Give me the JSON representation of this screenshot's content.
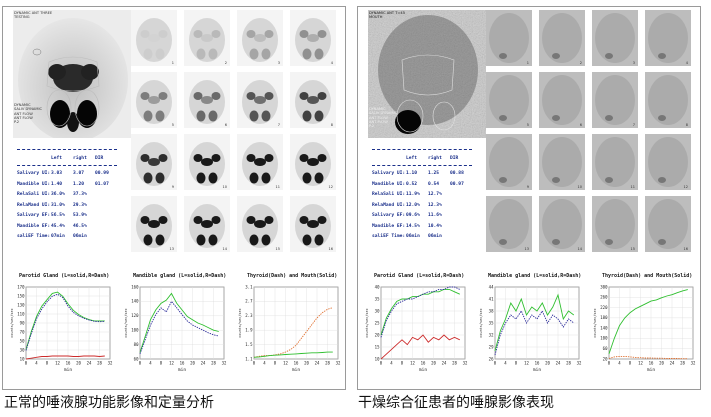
{
  "captions": {
    "normal": "正常的唾液腺功能影像和定量分析",
    "sjogren": "干燥综合征患者的唾腺影像表现"
  },
  "normal": {
    "scan_header": "DYNAMIC ANT THREE\nTESTING",
    "scan_info": "DYNAMIC\nSALIV DYNAMIC\nANT FLOW\nANT FLOW\nP.2",
    "frame_numbers": [
      "1",
      "2",
      "3",
      "4",
      "5",
      "6",
      "7",
      "8",
      "9",
      "10",
      "11",
      "12",
      "13",
      "14",
      "15",
      "16"
    ],
    "table": {
      "headers": [
        "Left",
        "right",
        "DIR"
      ],
      "rows": [
        {
          "label": "Salivary UI:",
          "left": "3.03",
          "right": "3.07",
          "dir": "00.99"
        },
        {
          "label": "Mandible UI:",
          "left": "1.40",
          "right": "1.20",
          "dir": "01.07"
        },
        {
          "label": "RelaSali UI:",
          "left": "36.0%",
          "right": "37.3%",
          "dir": ""
        },
        {
          "label": "RelaMand UI:",
          "left": "31.0%",
          "right": "29.3%",
          "dir": ""
        },
        {
          "label": "Salivary EF:",
          "left": "56.5%",
          "right": "53.9%",
          "dir": ""
        },
        {
          "label": "Mandible EF:",
          "left": "45.4%",
          "right": "46.5%",
          "dir": ""
        },
        {
          "label": "saliEF Time:",
          "left": "07min",
          "right": "06min",
          "dir": ""
        }
      ]
    },
    "charts": [
      {
        "title": "Parotid Gland (L=solid,R=Dash)",
        "ylabel": "counts/sec/sec",
        "xlabel": "min",
        "yticks": [
          "10",
          "30",
          "50",
          "70",
          "90",
          "110",
          "130",
          "150",
          "170"
        ],
        "xticks": [
          "0",
          "4",
          "8",
          "12",
          "16",
          "20",
          "24",
          "28",
          "32"
        ]
      },
      {
        "title": "Mandible gland (L=solid,R=Dash)",
        "ylabel": "counts/sec/sec",
        "xlabel": "min",
        "yticks": [
          "60",
          "80",
          "100",
          "120",
          "140",
          "160"
        ],
        "xticks": [
          "0",
          "4",
          "8",
          "12",
          "16",
          "20",
          "24",
          "28",
          "32"
        ]
      },
      {
        "title": "Thyroid(Dash) and Mouth(Solid)",
        "ylabel": "counts/sec/sec",
        "xlabel": "min",
        "yticks": [
          "1.1",
          "1.5",
          "1.9",
          "2.3",
          "2.7",
          "3.1"
        ],
        "xticks": [
          "0",
          "4",
          "8",
          "12",
          "16",
          "20",
          "24",
          "28",
          "32"
        ]
      }
    ]
  },
  "sjogren": {
    "scan_header": "DYNAMIC ANT T=45\nMOUTH",
    "scan_info": "DYNAMIC\nSALIV DYNAMIC\nANT FLOW\nANT FLOW\nP.2",
    "frame_numbers": [
      "1",
      "2",
      "3",
      "4",
      "5",
      "6",
      "7",
      "8",
      "9",
      "10",
      "11",
      "12",
      "13",
      "14",
      "15",
      "16"
    ],
    "table": {
      "headers": [
        "Left",
        "right",
        "DIR"
      ],
      "rows": [
        {
          "label": "Salivary UI:",
          "left": "1.10",
          "right": "1.25",
          "dir": "00.88"
        },
        {
          "label": "Mandible UI:",
          "left": "0.52",
          "right": "0.54",
          "dir": "00.97"
        },
        {
          "label": "RelaSali UI:",
          "left": "11.9%",
          "right": "12.7%",
          "dir": ""
        },
        {
          "label": "RelaMand UI:",
          "left": "12.0%",
          "right": "12.3%",
          "dir": ""
        },
        {
          "label": "Salivary EF:",
          "left": "09.6%",
          "right": "11.6%",
          "dir": ""
        },
        {
          "label": "Mandible EF:",
          "left": "14.5%",
          "right": "10.4%",
          "dir": ""
        },
        {
          "label": "saliEF Time:",
          "left": "06min",
          "right": "06min",
          "dir": ""
        }
      ]
    },
    "charts": [
      {
        "title": "Parotid Gland (L=solid,R=Dash)",
        "ylabel": "counts/sec/sec",
        "xlabel": "min",
        "yticks": [
          "10",
          "15",
          "20",
          "25",
          "30",
          "35",
          "40"
        ],
        "xticks": [
          "0",
          "4",
          "8",
          "12",
          "16",
          "20",
          "24",
          "28",
          "32"
        ]
      },
      {
        "title": "Mandible gland (L=solid,R=Dash)",
        "ylabel": "counts/sec/sec",
        "xlabel": "min",
        "yticks": [
          "26",
          "29",
          "32",
          "35",
          "38",
          "41",
          "44"
        ],
        "xticks": [
          "0",
          "4",
          "8",
          "12",
          "16",
          "20",
          "24",
          "28",
          "32"
        ]
      },
      {
        "title": "Thyroid(Dash) and Mouth(Solid)",
        "ylabel": "counts/sec/sec",
        "xlabel": "min",
        "yticks": [
          "20",
          "60",
          "100",
          "140",
          "180",
          "220",
          "260",
          "300"
        ],
        "xticks": [
          "0",
          "4",
          "8",
          "12",
          "16",
          "20",
          "24",
          "28",
          "32"
        ]
      }
    ]
  },
  "chart_data": [
    {
      "type": "line",
      "title": "Parotid Gland (L=solid,R=Dash)",
      "xlabel": "min",
      "ylabel": "counts/sec/sec",
      "xlim": [
        0,
        32
      ],
      "ylim": [
        10,
        180
      ],
      "x": [
        0,
        2,
        4,
        6,
        8,
        10,
        12,
        14,
        16,
        18,
        20,
        22,
        24,
        26,
        28,
        30
      ],
      "series": [
        {
          "line": "solid",
          "color": "#2fbf2f",
          "values": [
            32,
            75,
            110,
            135,
            150,
            165,
            168,
            158,
            140,
            125,
            115,
            108,
            103,
            100,
            100,
            100
          ]
        },
        {
          "line": "dash",
          "color": "#2a2a99",
          "values": [
            30,
            70,
            105,
            128,
            145,
            158,
            163,
            155,
            135,
            120,
            112,
            106,
            102,
            99,
            98,
            99
          ]
        },
        {
          "line": "solid",
          "color": "#cc2a2a",
          "values": [
            10,
            12,
            14,
            16,
            16,
            17,
            17,
            17,
            17,
            16,
            16,
            17,
            17,
            17,
            16,
            17
          ]
        }
      ]
    },
    {
      "type": "line",
      "title": "Mandible gland (L=solid,R=Dash)",
      "xlabel": "min",
      "ylabel": "counts/sec/sec",
      "xlim": [
        0,
        32
      ],
      "ylim": [
        60,
        170
      ],
      "x": [
        0,
        2,
        4,
        6,
        8,
        10,
        12,
        14,
        16,
        18,
        20,
        22,
        24,
        26,
        28,
        30
      ],
      "series": [
        {
          "line": "solid",
          "color": "#2fbf2f",
          "values": [
            70,
            95,
            120,
            135,
            145,
            150,
            160,
            145,
            135,
            125,
            120,
            115,
            112,
            108,
            104,
            102
          ]
        },
        {
          "line": "dash",
          "color": "#2a2a99",
          "values": [
            68,
            90,
            112,
            128,
            138,
            132,
            148,
            138,
            128,
            118,
            112,
            108,
            104,
            100,
            97,
            95
          ]
        }
      ]
    },
    {
      "type": "line",
      "title": "Thyroid(Dash) and Mouth(Solid)",
      "xlabel": "min",
      "ylabel": "counts/sec/sec",
      "xlim": [
        0,
        32
      ],
      "ylim": [
        1.1,
        3.2
      ],
      "x": [
        0,
        2,
        4,
        6,
        8,
        10,
        12,
        14,
        16,
        18,
        20,
        22,
        24,
        26,
        28,
        30
      ],
      "series": [
        {
          "line": "dash",
          "color": "#e07030",
          "values": [
            1.15,
            1.18,
            1.2,
            1.2,
            1.22,
            1.25,
            1.3,
            1.38,
            1.5,
            1.7,
            1.9,
            2.1,
            2.3,
            2.45,
            2.55,
            2.6
          ]
        },
        {
          "line": "solid",
          "color": "#2fbf2f",
          "values": [
            1.15,
            1.16,
            1.18,
            1.2,
            1.21,
            1.22,
            1.23,
            1.24,
            1.25,
            1.26,
            1.27,
            1.28,
            1.28,
            1.29,
            1.3,
            1.3
          ]
        }
      ]
    },
    {
      "type": "line",
      "title": "Parotid Gland (L=solid,R=Dash)",
      "xlabel": "min",
      "ylabel": "counts/sec/sec",
      "xlim": [
        0,
        32
      ],
      "ylim": [
        10,
        40
      ],
      "x": [
        0,
        2,
        4,
        6,
        8,
        10,
        12,
        14,
        16,
        18,
        20,
        22,
        24,
        26,
        28,
        30
      ],
      "series": [
        {
          "line": "solid",
          "color": "#2fbf2f",
          "values": [
            20,
            27,
            31,
            34,
            35,
            35,
            36,
            36,
            37,
            37,
            38,
            38,
            39,
            39,
            38,
            37
          ]
        },
        {
          "line": "dash",
          "color": "#2a2a99",
          "values": [
            19,
            26,
            30,
            33,
            34,
            35,
            35,
            36,
            37,
            38,
            38,
            39,
            39,
            40,
            40,
            39
          ]
        },
        {
          "line": "solid",
          "color": "#cc2a2a",
          "values": [
            10,
            12,
            14,
            16,
            18,
            16,
            19,
            18,
            20,
            17,
            19,
            18,
            20,
            18,
            19,
            18
          ]
        }
      ]
    },
    {
      "type": "line",
      "title": "Mandible gland (L=solid,R=Dash)",
      "xlabel": "min",
      "ylabel": "counts/sec/sec",
      "xlim": [
        0,
        32
      ],
      "ylim": [
        26,
        44
      ],
      "x": [
        0,
        2,
        4,
        6,
        8,
        10,
        12,
        14,
        16,
        18,
        20,
        22,
        24,
        26,
        28,
        30
      ],
      "series": [
        {
          "line": "solid",
          "color": "#2fbf2f",
          "values": [
            28,
            33,
            36,
            40,
            38,
            41,
            37,
            39,
            38,
            40,
            37,
            39,
            42,
            36,
            38,
            37
          ]
        },
        {
          "line": "dash",
          "color": "#2a2a99",
          "values": [
            27,
            32,
            35,
            37,
            36,
            38,
            35,
            37,
            36,
            38,
            35,
            37,
            36,
            34,
            36,
            35
          ]
        }
      ]
    },
    {
      "type": "line",
      "title": "Thyroid(Dash) and Mouth(Solid)",
      "xlabel": "min",
      "ylabel": "counts/sec/sec",
      "xlim": [
        0,
        32
      ],
      "ylim": [
        20,
        300
      ],
      "x": [
        0,
        2,
        4,
        6,
        8,
        10,
        12,
        14,
        16,
        18,
        20,
        22,
        24,
        26,
        28,
        30
      ],
      "series": [
        {
          "line": "solid",
          "color": "#2fbf2f",
          "values": [
            40,
            100,
            150,
            180,
            200,
            215,
            225,
            235,
            245,
            250,
            258,
            265,
            270,
            278,
            285,
            290
          ]
        },
        {
          "line": "dash",
          "color": "#e07030",
          "values": [
            22,
            28,
            30,
            30,
            28,
            26,
            25,
            24,
            24,
            23,
            23,
            22,
            22,
            22,
            21,
            21
          ]
        }
      ]
    }
  ]
}
